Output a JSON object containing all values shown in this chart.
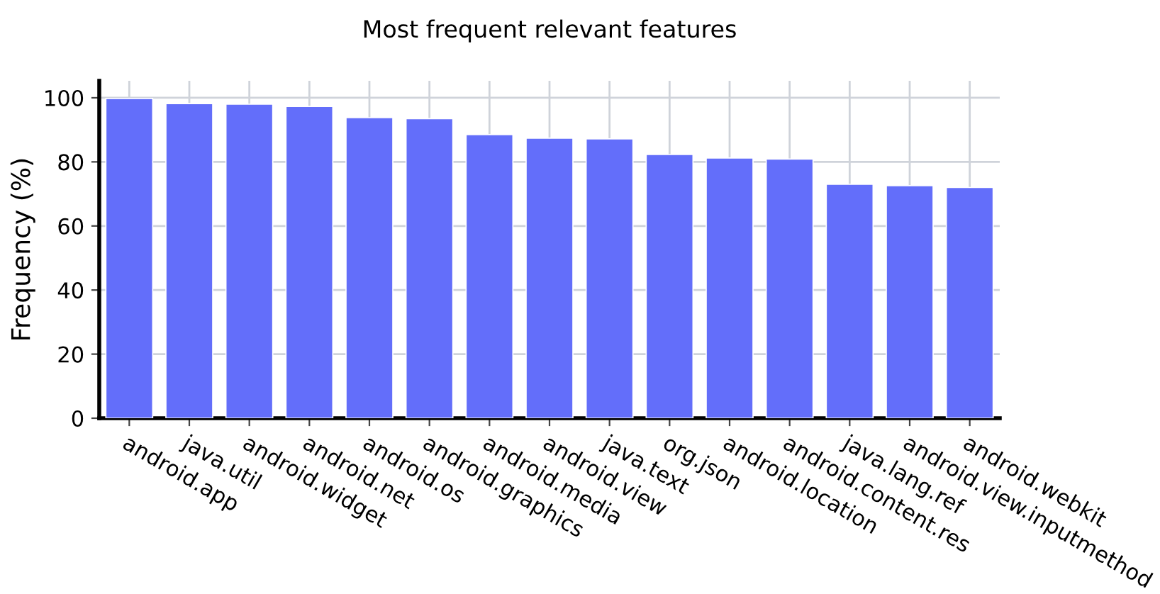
{
  "chart_data": {
    "type": "bar",
    "title": "Most frequent relevant features",
    "ylabel": "Frequency (%)",
    "categories": [
      "android.app",
      "java.util",
      "android.widget",
      "android.net",
      "android.os",
      "android.graphics",
      "android.media",
      "android.view",
      "java.text",
      "org.json",
      "android.location",
      "android.content.res",
      "java.lang.ref",
      "android.view.inputmethod",
      "android.webkit"
    ],
    "values": [
      99.8,
      98.2,
      98,
      97.3,
      93.8,
      93.5,
      88.5,
      87.4,
      87.2,
      82.3,
      81.2,
      80.9,
      73,
      72.6,
      72
    ],
    "color": "#636efa",
    "ylim": [
      0,
      105.3
    ],
    "yticks": [
      0,
      20,
      40,
      60,
      80,
      100
    ],
    "grid": true
  }
}
